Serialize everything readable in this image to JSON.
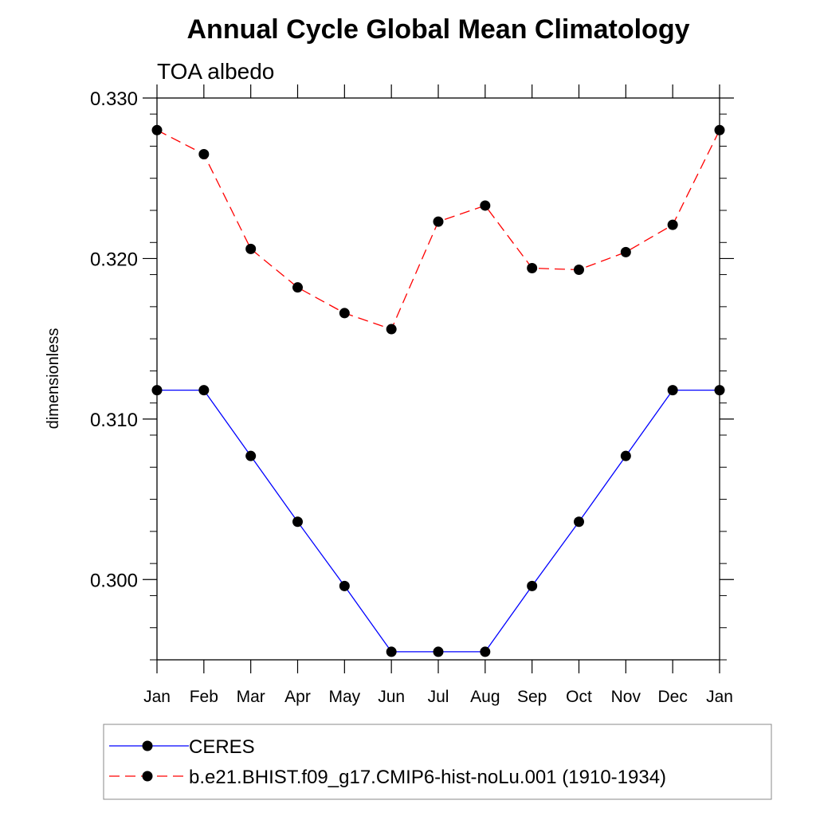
{
  "chart_data": {
    "type": "line",
    "title": "Annual Cycle Global Mean Climatology",
    "subtitle": "TOA albedo",
    "xlabel": "",
    "ylabel": "dimensionless",
    "categories": [
      "Jan",
      "Feb",
      "Mar",
      "Apr",
      "May",
      "Jun",
      "Jul",
      "Aug",
      "Sep",
      "Oct",
      "Nov",
      "Dec",
      "Jan"
    ],
    "ylim": [
      0.295,
      0.33
    ],
    "yticks": [
      0.3,
      0.31,
      0.32,
      0.33
    ],
    "ytick_labels": [
      "0.300",
      "0.310",
      "0.320",
      "0.330"
    ],
    "grid": false,
    "legend_position": "bottom",
    "series": [
      {
        "name": "CERES",
        "color": "#0000ff",
        "line_style": "solid",
        "marker": "filled-circle",
        "values": [
          0.3118,
          0.3118,
          0.3077,
          0.3036,
          0.2996,
          0.2955,
          0.2955,
          0.2955,
          0.2996,
          0.3036,
          0.3077,
          0.3118,
          0.3118
        ]
      },
      {
        "name": "b.e21.BHIST.f09_g17.CMIP6-hist-noLu.001 (1910-1934)",
        "color": "#ff0000",
        "line_style": "dashed",
        "marker": "filled-circle",
        "values": [
          0.328,
          0.3265,
          0.3206,
          0.3182,
          0.3166,
          0.3156,
          0.3223,
          0.3233,
          0.3194,
          0.3193,
          0.3204,
          0.3221,
          0.328
        ]
      }
    ]
  }
}
